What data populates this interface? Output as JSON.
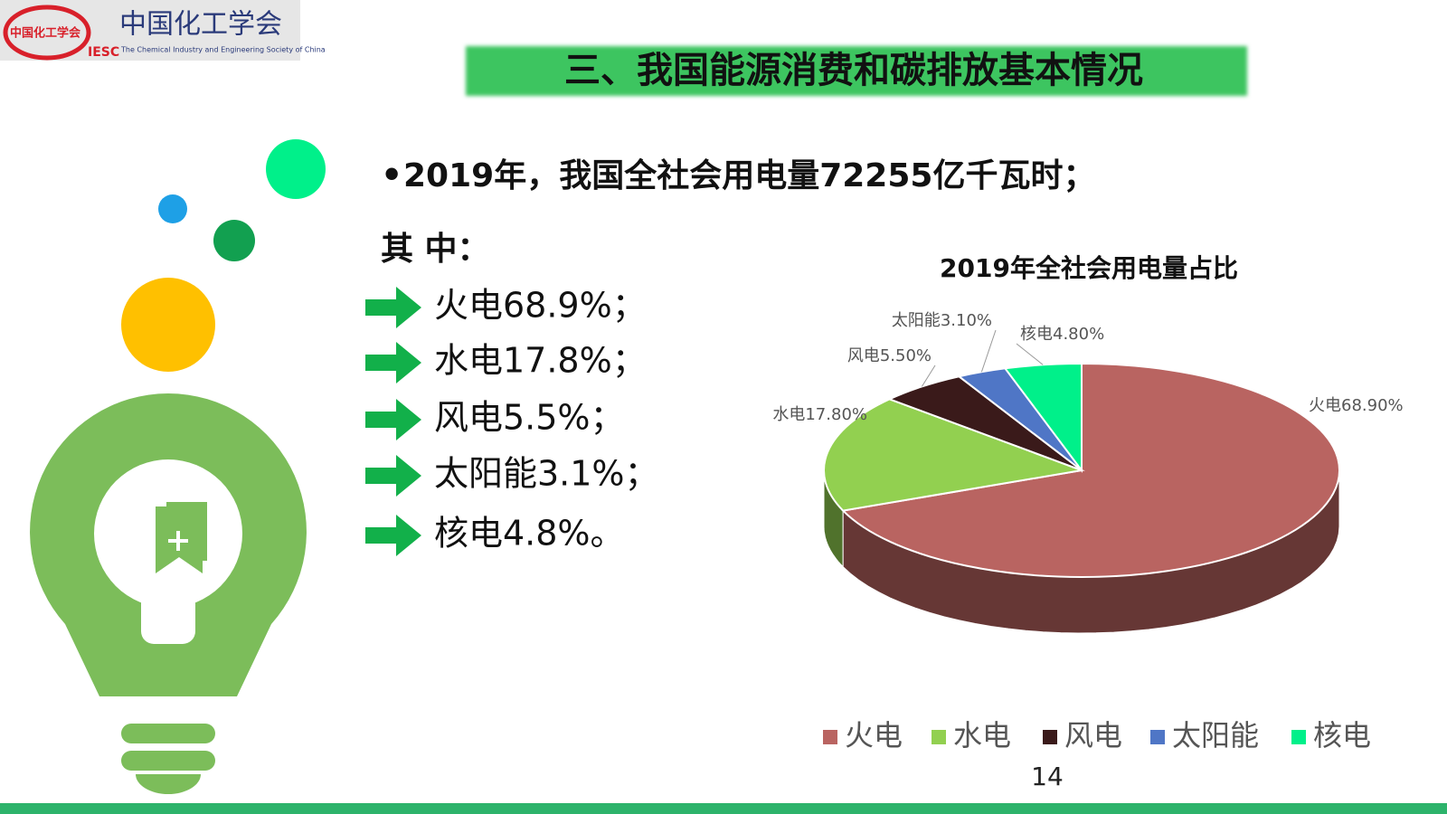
{
  "logo": {
    "badge": "中国化工学会",
    "name": "中国化工学会",
    "abbr": "IESC",
    "english": "The Chemical Industry and Engineering Society of China"
  },
  "title": "三、我国能源消费和碳排放基本情况",
  "bullet": "2019年，我国全社会用电量72255亿千瓦时；",
  "subheading": "其 中：",
  "items": [
    "火电68.9%；",
    "水电17.8%；",
    "风电5.5%；",
    "太阳能3.1%；",
    "核电4.8%。"
  ],
  "chart_data": {
    "type": "pie",
    "title": "2019年全社会用电量占比",
    "categories": [
      "火电",
      "水电",
      "风电",
      "太阳能",
      "核电"
    ],
    "values": [
      68.9,
      17.8,
      5.5,
      3.1,
      4.8
    ],
    "value_labels": [
      "68.90%",
      "17.80%",
      "5.50%",
      "3.10%",
      "4.80%"
    ],
    "colors": [
      "#b96461",
      "#92d050",
      "#3a1a1a",
      "#4f76c6",
      "#00f08a"
    ],
    "legend": "bottom"
  },
  "page_number": "14"
}
